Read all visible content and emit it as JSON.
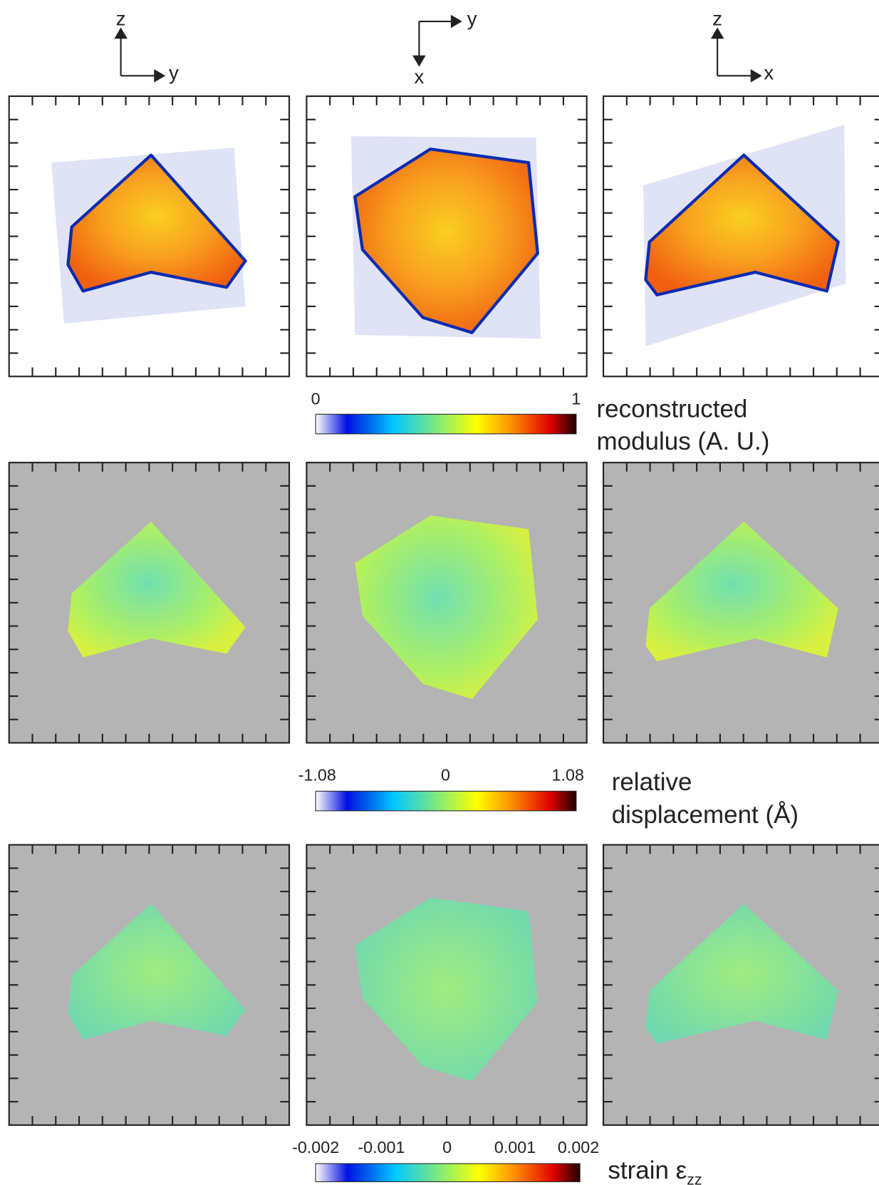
{
  "orientation": [
    {
      "vertical": "z",
      "horizontal": "y"
    },
    {
      "horizontal": "y",
      "vertical": "x"
    },
    {
      "vertical": "z",
      "horizontal": "x"
    }
  ],
  "colorbars": [
    {
      "ticks": [
        "0",
        "1"
      ],
      "title": [
        "reconstructed",
        "modulus (A. U.)"
      ]
    },
    {
      "ticks": [
        "-1.08",
        "0",
        "1.08"
      ],
      "title": [
        "relative",
        "displacement (Å)"
      ]
    },
    {
      "ticks": [
        "-0.002",
        "-0.001",
        "0",
        "0.001",
        "0.002"
      ],
      "title": [
        "strain ε"
      ],
      "subscript": "zz"
    }
  ]
}
